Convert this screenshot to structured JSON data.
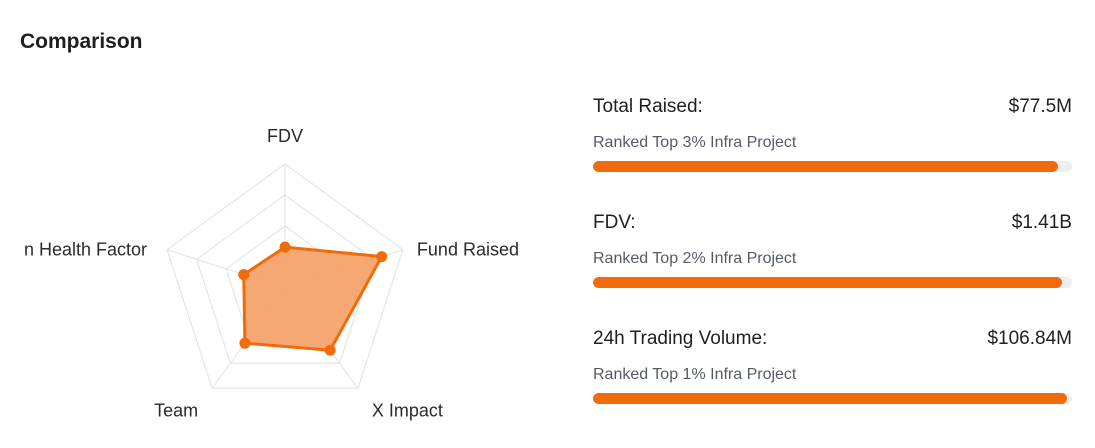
{
  "section": {
    "title": "Comparison"
  },
  "radar": {
    "axes": [
      "FDV",
      "Fund Raised",
      "X Impact",
      "Team",
      "n Health Factor"
    ],
    "values": [
      0.33,
      0.82,
      0.62,
      0.55,
      0.35
    ],
    "fill_color": "#f6a36b",
    "line_color": "#f26b0a",
    "grid_color": "#e5e5e5",
    "grid_levels": 4
  },
  "metrics": [
    {
      "label": "Total Raised:",
      "value": "$77.5M",
      "rank": "Ranked Top 3% Infra Project",
      "fill_fraction": 0.97
    },
    {
      "label": "FDV:",
      "value": "$1.41B",
      "rank": "Ranked Top 2% Infra Project",
      "fill_fraction": 0.98
    },
    {
      "label": "24h Trading Volume:",
      "value": "$106.84M",
      "rank": "Ranked Top 1% Infra Project",
      "fill_fraction": 0.99
    }
  ]
}
